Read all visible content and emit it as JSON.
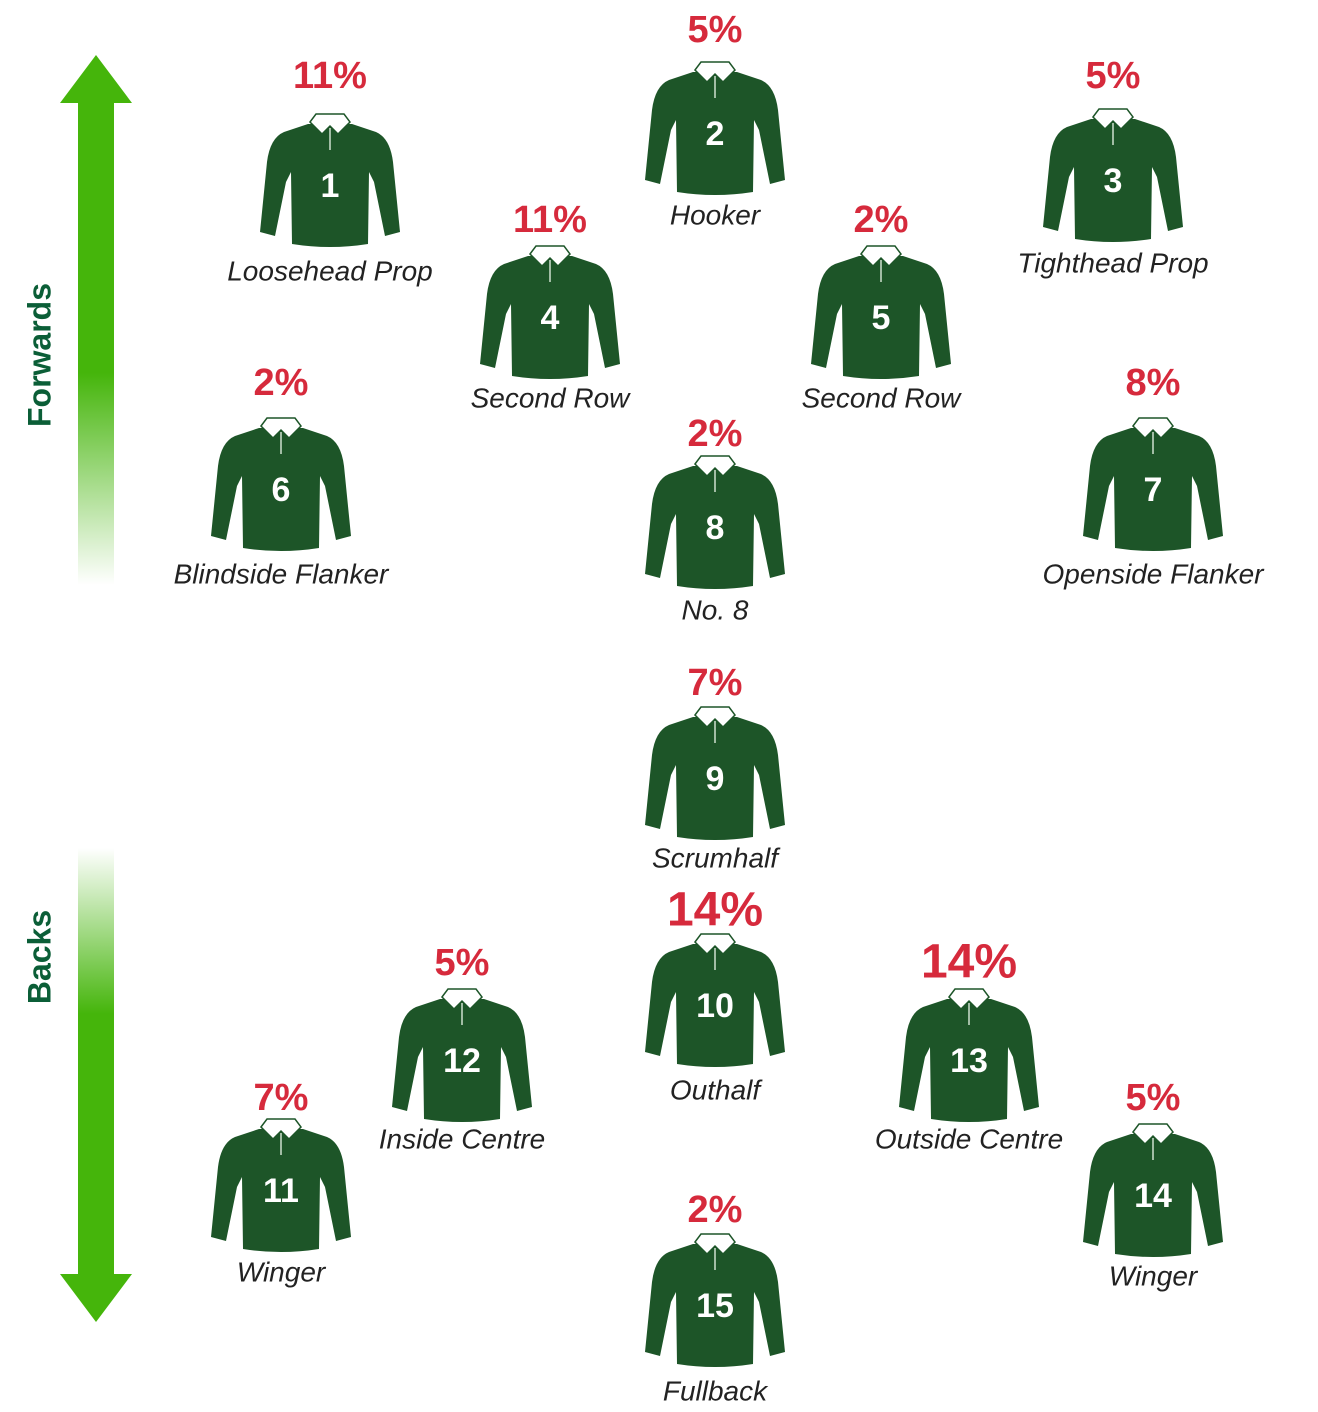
{
  "sides": {
    "forwards": "Forwards",
    "backs": "Backs"
  },
  "players": [
    {
      "number": "1",
      "position": "Loosehead Prop",
      "percent": "11%"
    },
    {
      "number": "2",
      "position": "Hooker",
      "percent": "5%"
    },
    {
      "number": "3",
      "position": "Tighthead Prop",
      "percent": "5%"
    },
    {
      "number": "4",
      "position": "Second Row",
      "percent": "11%"
    },
    {
      "number": "5",
      "position": "Second Row",
      "percent": "2%"
    },
    {
      "number": "6",
      "position": "Blindside Flanker",
      "percent": "2%"
    },
    {
      "number": "7",
      "position": "Openside Flanker",
      "percent": "8%"
    },
    {
      "number": "8",
      "position": "No. 8",
      "percent": "2%"
    },
    {
      "number": "9",
      "position": "Scrumhalf",
      "percent": "7%"
    },
    {
      "number": "10",
      "position": "Outhalf",
      "percent": "14%"
    },
    {
      "number": "11",
      "position": "Winger",
      "percent": "7%"
    },
    {
      "number": "12",
      "position": "Inside Centre",
      "percent": "5%"
    },
    {
      "number": "13",
      "position": "Outside Centre",
      "percent": "14%"
    },
    {
      "number": "14",
      "position": "Winger",
      "percent": "5%"
    },
    {
      "number": "15",
      "position": "Fullback",
      "percent": "2%"
    }
  ]
}
